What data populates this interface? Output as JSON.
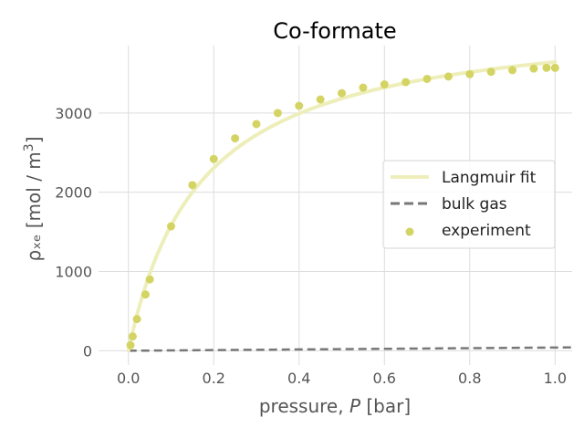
{
  "chart_data": {
    "type": "scatter",
    "title": "Co-formate",
    "xlabel": {
      "prefix": "pressure, ",
      "var": "P",
      "suffix": " [bar]"
    },
    "ylabel": {
      "main": "ρₓₑ [mol / m",
      "sup": "3",
      "close": "]"
    },
    "xlim": [
      -0.07,
      1.04
    ],
    "ylim": [
      -180,
      3850
    ],
    "xticks": [
      0.0,
      0.2,
      0.4,
      0.6,
      0.8,
      1.0
    ],
    "xtick_labels": [
      "0.0",
      "0.2",
      "0.4",
      "0.6",
      "0.8",
      "1.0"
    ],
    "yticks": [
      0,
      1000,
      2000,
      3000
    ],
    "ytick_labels": [
      "0",
      "1000",
      "2000",
      "3000"
    ],
    "grid": true,
    "legend_position": "right",
    "series": [
      {
        "name": "Langmuir fit",
        "kind": "line",
        "color": "#eeeebb",
        "model": {
          "qmax": 4260,
          "K": 5.9
        },
        "x_range": [
          0.0,
          1.0
        ]
      },
      {
        "name": "bulk gas",
        "kind": "dashed-line",
        "color": "#777777",
        "x": [
          0.0,
          1.04
        ],
        "y": [
          0,
          42
        ]
      },
      {
        "name": "experiment",
        "kind": "scatter",
        "color": "#d4d465",
        "points": [
          [
            0.005,
            70
          ],
          [
            0.01,
            180
          ],
          [
            0.02,
            400
          ],
          [
            0.04,
            710
          ],
          [
            0.05,
            900
          ],
          [
            0.1,
            1570
          ],
          [
            0.15,
            2090
          ],
          [
            0.2,
            2420
          ],
          [
            0.25,
            2680
          ],
          [
            0.3,
            2860
          ],
          [
            0.35,
            3000
          ],
          [
            0.4,
            3090
          ],
          [
            0.45,
            3170
          ],
          [
            0.5,
            3250
          ],
          [
            0.55,
            3320
          ],
          [
            0.6,
            3360
          ],
          [
            0.65,
            3390
          ],
          [
            0.7,
            3430
          ],
          [
            0.75,
            3460
          ],
          [
            0.8,
            3490
          ],
          [
            0.85,
            3520
          ],
          [
            0.9,
            3540
          ],
          [
            0.95,
            3560
          ],
          [
            0.98,
            3570
          ],
          [
            1.0,
            3570
          ]
        ]
      }
    ]
  }
}
